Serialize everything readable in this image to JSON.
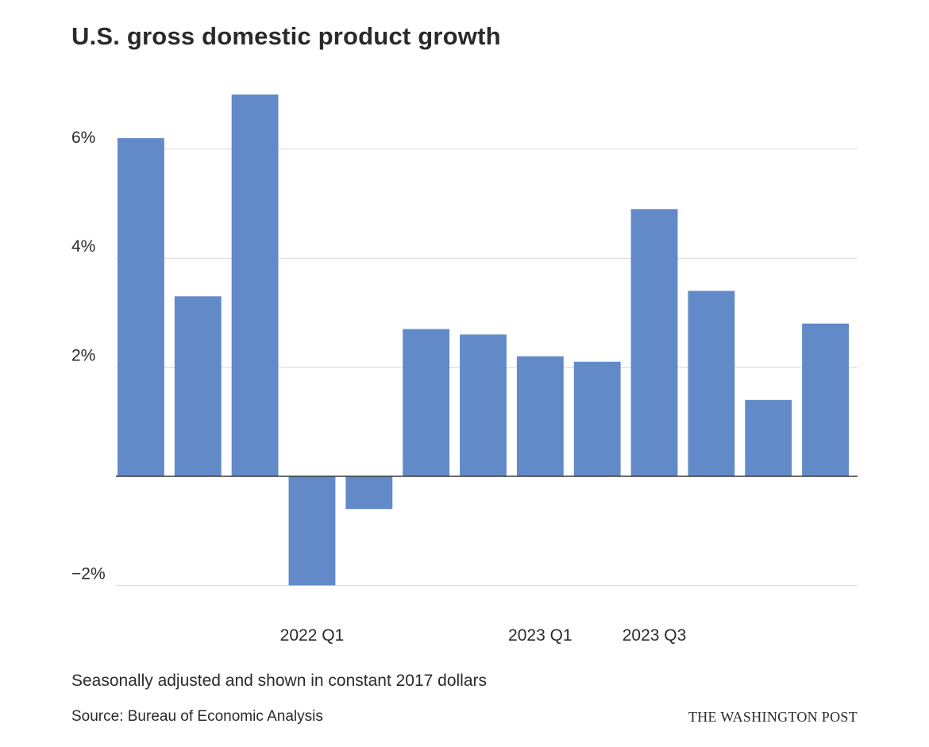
{
  "chart_data": {
    "type": "bar",
    "title": "U.S. gross domestic product growth",
    "subtitle": "",
    "xlabel": "",
    "ylabel": "",
    "categories": [
      "",
      "",
      "",
      "2022 Q1",
      "",
      "",
      "",
      "2023 Q1",
      "",
      "2023 Q3",
      "",
      "",
      ""
    ],
    "values": [
      6.2,
      3.3,
      7.0,
      -2.0,
      -0.6,
      2.7,
      2.6,
      2.2,
      2.1,
      4.9,
      3.4,
      1.4,
      2.8
    ],
    "ylim": [
      -2,
      7
    ],
    "yticks": [
      -2,
      2,
      4,
      6
    ],
    "ytick_labels": [
      "−2%",
      "2%",
      "4%",
      "6%"
    ],
    "grid": true,
    "bar_color": "#628ac8",
    "note": "Seasonally adjusted and shown in constant 2017 dollars",
    "source": "Source: Bureau of Economic Analysis",
    "credit": "THE WASHINGTON POST"
  }
}
